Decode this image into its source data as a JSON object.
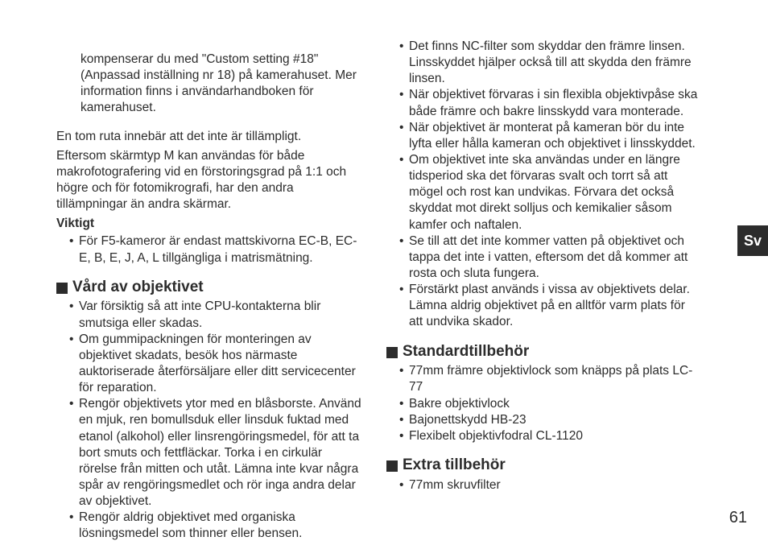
{
  "left": {
    "intro_indented": "kompenserar du med \"Custom setting #18\" (Anpassad inställning nr 18) på kamerahuset. Mer information finns i användarhandboken för kamerahuset.",
    "para1": "En tom ruta innebär att det inte är tillämpligt.",
    "para2": "Eftersom skärmtyp M kan användas för både makrofotografering vid en förstoringsgrad på 1:1 och högre och för fotomikrografi, har den andra tillämpningar än andra skärmar.",
    "viktigt_label": "Viktigt",
    "viktigt_items": {
      "0": "För F5-kameror är endast mattskivorna EC-B, EC-E, B, E, J, A, L tillgängliga i matrismätning."
    },
    "section_care": "Vård av objektivet",
    "care_items": {
      "0": "Var försiktig så att inte CPU-kontakterna blir smutsiga eller skadas.",
      "1": "Om gummipackningen för monteringen av objektivet skadats, besök hos närmaste auktoriserade återförsäljare eller ditt servicecenter för reparation.",
      "2": "Rengör objektivets ytor med en blåsborste. Använd en mjuk, ren bomullsduk eller linsduk fuktad med etanol (alkohol) eller linsrengöringsmedel, för att ta bort smuts och fettfläckar. Torka i en cirkulär rörelse från mitten och utåt. Lämna inte kvar några spår av rengöringsmedlet  och rör inga andra delar av objektivet.",
      "3": "Rengör aldrig objektivet med organiska lösningsmedel som thinner eller bensen."
    }
  },
  "right": {
    "care_cont": {
      "0": "Det finns NC-filter som skyddar den främre linsen. Linsskyddet hjälper också till att skydda den främre linsen.",
      "1": "När objektivet förvaras i sin flexibla objektivpåse ska både främre och bakre linsskydd vara monterade.",
      "2": "När objektivet är monterat på kameran bör du inte lyfta eller hålla kameran och objektivet i linsskyddet.",
      "3": "Om objektivet inte ska användas under en längre tidsperiod ska det förvaras svalt och torrt så att mögel och rost kan undvikas. Förvara det också skyddat mot direkt solljus och kemikalier såsom kamfer och naftalen.",
      "4": "Se till att det inte kommer vatten på objektivet och tappa det inte i vatten, eftersom det då kommer att rosta och sluta fungera.",
      "5": "Förstärkt plast används i vissa av objektivets delar. Lämna aldrig objektivet på en alltför varm plats för att undvika skador."
    },
    "section_std": "Standardtillbehör",
    "std_items": {
      "0": "77mm främre objektivlock som knäpps på plats LC-77",
      "1": "Bakre objektivlock",
      "2": "Bajonettskydd HB-23",
      "3": "Flexibelt objektivfodral CL-1120"
    },
    "section_extra": "Extra tillbehör",
    "extra_items": {
      "0": "77mm skruvfilter"
    }
  },
  "side_tab": "Sv",
  "page_number": "61"
}
